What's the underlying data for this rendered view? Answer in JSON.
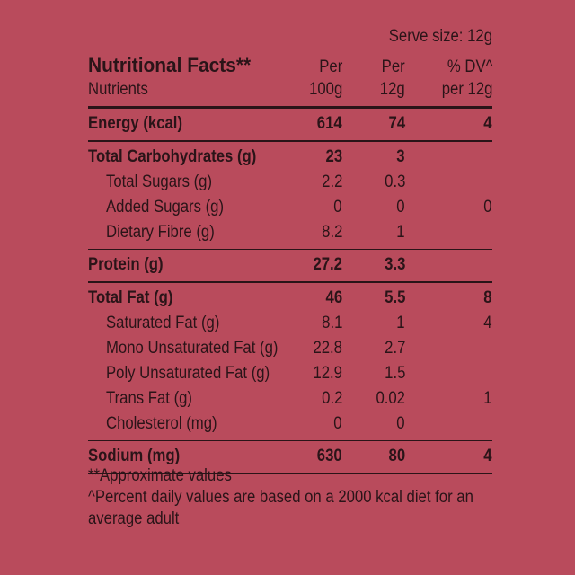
{
  "serve_size": "Serve size: 12g",
  "title": "Nutritional Facts**",
  "nutrients_label": "Nutrients",
  "columns": [
    {
      "line1": "Per",
      "line2": "100g"
    },
    {
      "line1": "Per",
      "line2": "12g"
    },
    {
      "line1": "% DV^",
      "line2": "per 12g"
    }
  ],
  "groups": [
    {
      "rows": [
        {
          "label": "Energy (kcal)",
          "per100": "614",
          "per12": "74",
          "dv": "4",
          "bold": true
        }
      ]
    },
    {
      "rows": [
        {
          "label": "Total Carbohydrates (g)",
          "per100": "23",
          "per12": "3",
          "dv": "",
          "bold": true
        },
        {
          "label": "Total Sugars (g)",
          "per100": "2.2",
          "per12": "0.3",
          "dv": "",
          "bold": false
        },
        {
          "label": "Added Sugars (g)",
          "per100": "0",
          "per12": "0",
          "dv": "0",
          "bold": false
        },
        {
          "label": "Dietary Fibre (g)",
          "per100": "8.2",
          "per12": "1",
          "dv": "",
          "bold": false
        }
      ]
    },
    {
      "rows": [
        {
          "label": "Protein (g)",
          "per100": "27.2",
          "per12": "3.3",
          "dv": "",
          "bold": true
        }
      ]
    },
    {
      "rows": [
        {
          "label": "Total Fat (g)",
          "per100": "46",
          "per12": "5.5",
          "dv": "8",
          "bold": true
        },
        {
          "label": "Saturated Fat (g)",
          "per100": "8.1",
          "per12": "1",
          "dv": "4",
          "bold": false
        },
        {
          "label": "Mono Unsaturated Fat (g)",
          "per100": "22.8",
          "per12": "2.7",
          "dv": "",
          "bold": false
        },
        {
          "label": "Poly Unsaturated Fat (g)",
          "per100": "12.9",
          "per12": "1.5",
          "dv": "",
          "bold": false
        },
        {
          "label": "Trans Fat (g)",
          "per100": "0.2",
          "per12": "0.02",
          "dv": "1",
          "bold": false
        },
        {
          "label": "Cholesterol (mg)",
          "per100": "0",
          "per12": "0",
          "dv": "",
          "bold": false
        }
      ]
    },
    {
      "rows": [
        {
          "label": "Sodium (mg)",
          "per100": "630",
          "per12": "80",
          "dv": "4",
          "bold": true
        }
      ]
    }
  ],
  "footnotes": [
    "**Approximate values",
    "^Percent daily values are based on a 2000 kcal diet for an",
    "average adult"
  ],
  "colors": {
    "background": "#b94b5c",
    "text": "#2a1418"
  }
}
